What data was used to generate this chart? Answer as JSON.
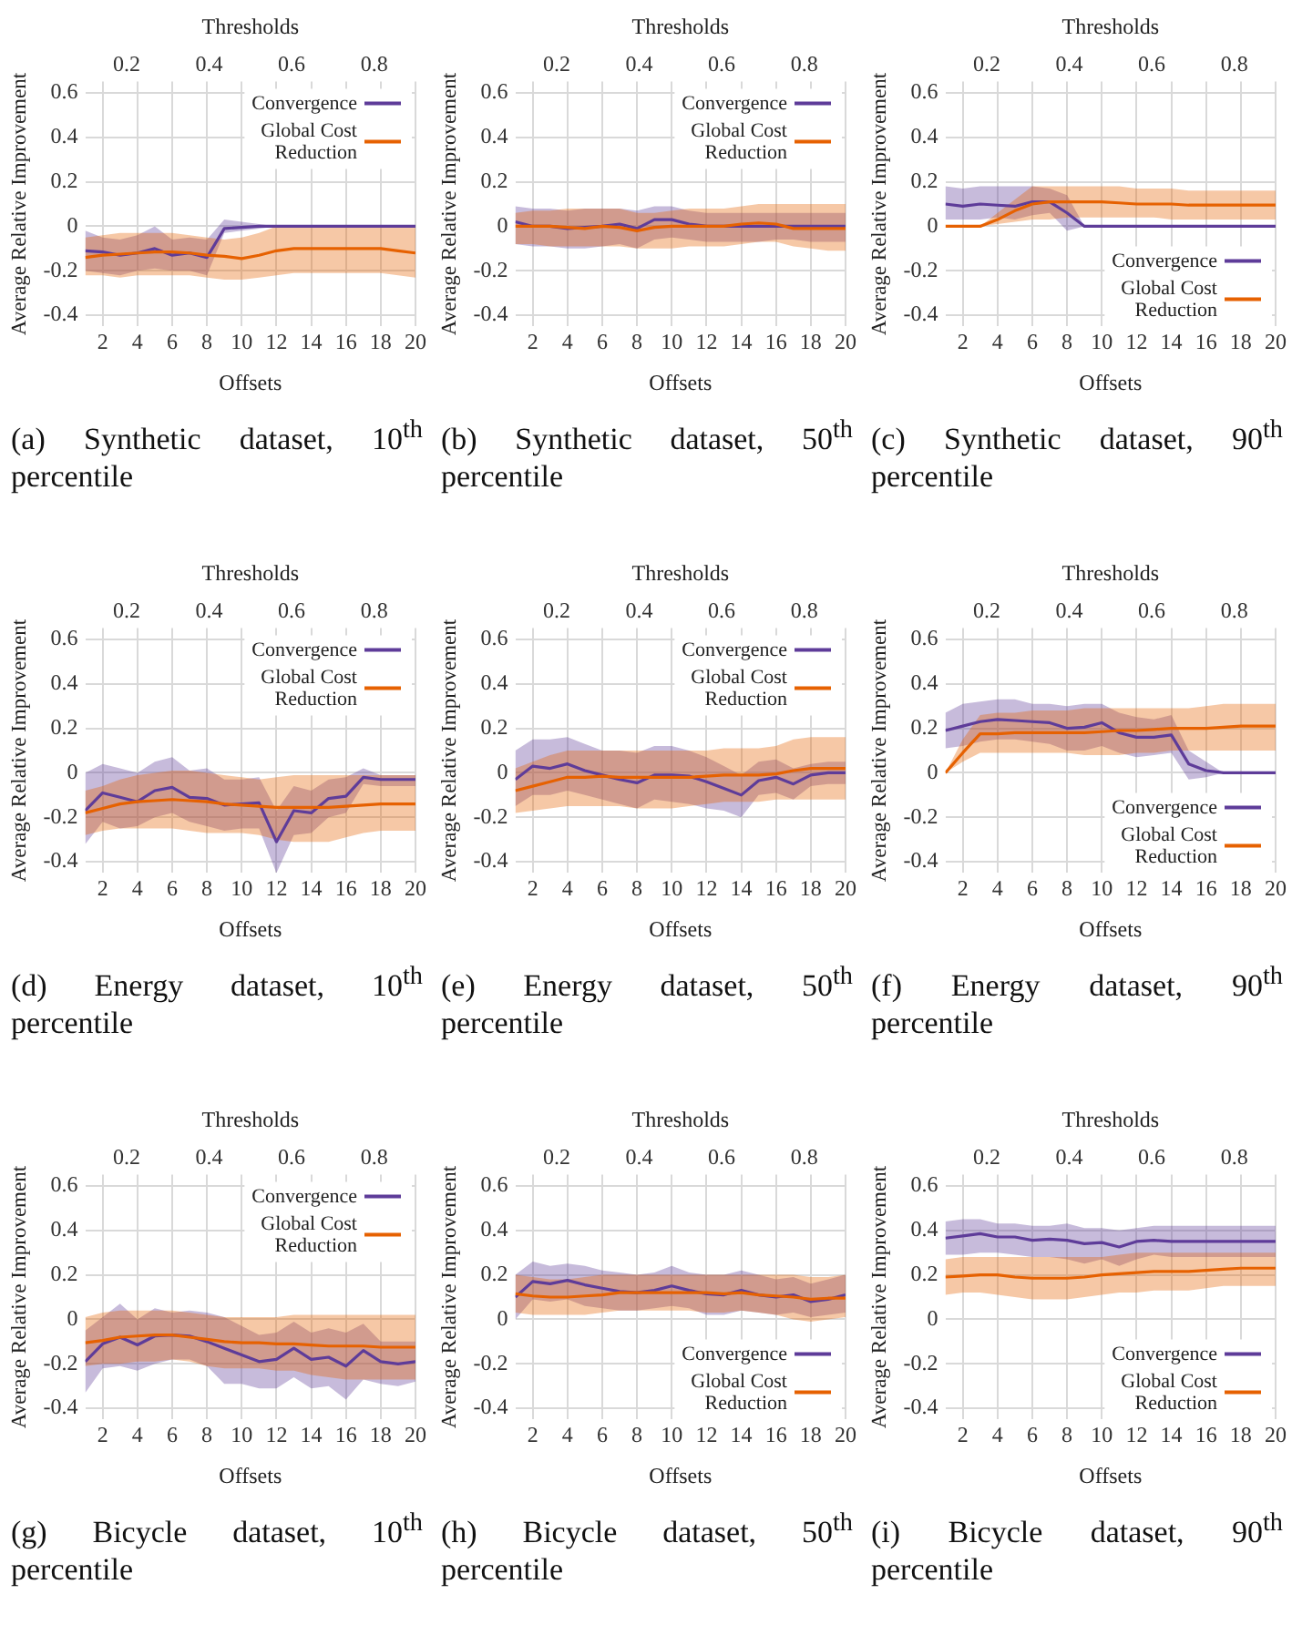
{
  "chart_data": [
    {
      "type": "line",
      "xlabel": "Offsets",
      "x2label": "Thresholds",
      "ylabel": "Average Relative Improvement",
      "annotations": [
        "(a) Synthetic dataset, 10$^{th}$ percentile"
      ],
      "x": [
        1,
        2,
        3,
        4,
        5,
        6,
        7,
        8,
        9,
        10,
        11,
        12,
        13,
        14,
        15,
        16,
        17,
        18,
        19,
        20
      ],
      "xlim": [
        1,
        20
      ],
      "xticks": [
        2,
        4,
        6,
        8,
        10,
        12,
        14,
        16,
        18,
        20
      ],
      "x2lim": [
        0.1,
        0.9
      ],
      "x2ticks": [
        0.2,
        0.4,
        0.6,
        0.8
      ],
      "ylim": [
        -0.45,
        0.65
      ],
      "yticks": [
        -0.4,
        -0.2,
        0,
        0.2,
        0.4,
        0.6
      ],
      "grid": true,
      "legend": "top right",
      "series": [
        {
          "name": "Convergence",
          "color": "#5e3c99",
          "values": [
            -0.11,
            -0.115,
            -0.13,
            -0.12,
            -0.1,
            -0.13,
            -0.12,
            -0.14,
            -0.01,
            -0.005,
            0,
            0,
            0,
            0,
            0,
            0,
            0,
            0,
            0,
            0
          ],
          "lower": [
            -0.2,
            -0.21,
            -0.22,
            -0.2,
            -0.19,
            -0.2,
            -0.2,
            -0.22,
            -0.03,
            -0.02,
            -0.01,
            0,
            0,
            0,
            0,
            0,
            0,
            0,
            0,
            0
          ],
          "upper": [
            -0.02,
            -0.05,
            -0.06,
            -0.04,
            0,
            -0.06,
            -0.05,
            -0.06,
            0.03,
            0.02,
            0.01,
            0,
            0,
            0,
            0,
            0,
            0,
            0,
            0,
            0
          ]
        },
        {
          "name": "Global Cost Reduction",
          "color": "#e66101",
          "values": [
            -0.14,
            -0.13,
            -0.125,
            -0.12,
            -0.115,
            -0.115,
            -0.12,
            -0.13,
            -0.135,
            -0.145,
            -0.13,
            -0.11,
            -0.1,
            -0.1,
            -0.1,
            -0.1,
            -0.1,
            -0.1,
            -0.11,
            -0.12
          ],
          "lower": [
            -0.22,
            -0.22,
            -0.23,
            -0.22,
            -0.22,
            -0.22,
            -0.22,
            -0.23,
            -0.24,
            -0.24,
            -0.23,
            -0.22,
            -0.21,
            -0.21,
            -0.21,
            -0.21,
            -0.21,
            -0.21,
            -0.22,
            -0.23
          ],
          "upper": [
            -0.05,
            -0.04,
            -0.03,
            -0.03,
            -0.03,
            -0.03,
            -0.04,
            -0.05,
            -0.06,
            -0.05,
            -0.03,
            0,
            0,
            0,
            0,
            0,
            0,
            0,
            0,
            0
          ]
        }
      ]
    },
    {
      "type": "line",
      "xlabel": "Offsets",
      "x2label": "Thresholds",
      "ylabel": "Average Relative Improvement",
      "annotations": [
        "(b) Synthetic dataset, 50$^{th}$ percentile"
      ],
      "x": [
        1,
        2,
        3,
        4,
        5,
        6,
        7,
        8,
        9,
        10,
        11,
        12,
        13,
        14,
        15,
        16,
        17,
        18,
        19,
        20
      ],
      "xlim": [
        1,
        20
      ],
      "xticks": [
        2,
        4,
        6,
        8,
        10,
        12,
        14,
        16,
        18,
        20
      ],
      "x2lim": [
        0.1,
        0.9
      ],
      "x2ticks": [
        0.2,
        0.4,
        0.6,
        0.8
      ],
      "ylim": [
        -0.45,
        0.65
      ],
      "yticks": [
        -0.4,
        -0.2,
        0,
        0.2,
        0.4,
        0.6
      ],
      "grid": true,
      "legend": "top right",
      "series": [
        {
          "name": "Convergence",
          "color": "#5e3c99",
          "values": [
            0.02,
            0,
            0,
            -0.01,
            -0.005,
            0,
            0.01,
            -0.01,
            0.03,
            0.03,
            0.01,
            0,
            0,
            0,
            0,
            0,
            0,
            0,
            0,
            0
          ],
          "lower": [
            -0.08,
            -0.09,
            -0.09,
            -0.1,
            -0.1,
            -0.09,
            -0.08,
            -0.1,
            -0.06,
            -0.05,
            -0.06,
            -0.07,
            -0.07,
            -0.07,
            -0.07,
            -0.06,
            -0.06,
            -0.07,
            -0.07,
            -0.07
          ],
          "upper": [
            0.09,
            0.08,
            0.08,
            0.07,
            0.08,
            0.08,
            0.08,
            0.07,
            0.09,
            0.09,
            0.07,
            0.06,
            0.06,
            0.06,
            0.06,
            0.06,
            0.06,
            0.06,
            0.06,
            0.06
          ]
        },
        {
          "name": "Global Cost Reduction",
          "color": "#e66101",
          "values": [
            0,
            0,
            0,
            -0.005,
            -0.01,
            0,
            -0.005,
            -0.02,
            -0.005,
            0,
            0,
            0,
            0,
            0.01,
            0.015,
            0.01,
            -0.01,
            -0.01,
            -0.01,
            -0.01
          ],
          "lower": [
            -0.08,
            -0.08,
            -0.09,
            -0.09,
            -0.09,
            -0.09,
            -0.09,
            -0.1,
            -0.1,
            -0.1,
            -0.09,
            -0.09,
            -0.09,
            -0.08,
            -0.07,
            -0.07,
            -0.09,
            -0.1,
            -0.11,
            -0.11
          ],
          "upper": [
            0.06,
            0.07,
            0.07,
            0.08,
            0.08,
            0.08,
            0.08,
            0.06,
            0.06,
            0.07,
            0.08,
            0.08,
            0.08,
            0.09,
            0.1,
            0.1,
            0.1,
            0.1,
            0.1,
            0.1
          ]
        }
      ]
    },
    {
      "type": "line",
      "xlabel": "Offsets",
      "x2label": "Thresholds",
      "ylabel": "Average Relative Improvement",
      "annotations": [
        "(c) Synthetic dataset, 90$^{th}$ percentile"
      ],
      "x": [
        1,
        2,
        3,
        4,
        5,
        6,
        7,
        8,
        9,
        10,
        11,
        12,
        13,
        14,
        15,
        16,
        17,
        18,
        19,
        20
      ],
      "xlim": [
        1,
        20
      ],
      "xticks": [
        2,
        4,
        6,
        8,
        10,
        12,
        14,
        16,
        18,
        20
      ],
      "x2lim": [
        0.1,
        0.9
      ],
      "x2ticks": [
        0.2,
        0.4,
        0.6,
        0.8
      ],
      "ylim": [
        -0.45,
        0.65
      ],
      "yticks": [
        -0.4,
        -0.2,
        0,
        0.2,
        0.4,
        0.6
      ],
      "grid": true,
      "legend": "bottom right",
      "series": [
        {
          "name": "Convergence",
          "color": "#5e3c99",
          "values": [
            0.1,
            0.09,
            0.1,
            0.095,
            0.09,
            0.11,
            0.11,
            0.06,
            0,
            0,
            0,
            0,
            0,
            0,
            0,
            0,
            0,
            0,
            0,
            0
          ],
          "lower": [
            0.03,
            0.03,
            0.03,
            0.04,
            0.03,
            0.05,
            0.06,
            -0.02,
            0,
            0,
            0,
            0,
            0,
            0,
            0,
            0,
            0,
            0,
            0,
            0
          ],
          "upper": [
            0.18,
            0.17,
            0.18,
            0.18,
            0.18,
            0.18,
            0.17,
            0.14,
            0,
            0,
            0,
            0,
            0,
            0,
            0,
            0,
            0,
            0,
            0,
            0
          ]
        },
        {
          "name": "Global Cost Reduction",
          "color": "#e66101",
          "values": [
            0,
            0,
            0,
            0.03,
            0.07,
            0.1,
            0.11,
            0.11,
            0.11,
            0.11,
            0.105,
            0.1,
            0.1,
            0.1,
            0.095,
            0.095,
            0.095,
            0.095,
            0.095,
            0.095
          ],
          "lower": [
            0,
            0,
            0,
            0.01,
            0.02,
            0.03,
            0.03,
            0.04,
            0.04,
            0.04,
            0.04,
            0.04,
            0.04,
            0.03,
            0.03,
            0.03,
            0.03,
            0.03,
            0.03,
            0.03
          ],
          "upper": [
            0,
            0,
            0,
            0.06,
            0.12,
            0.18,
            0.18,
            0.18,
            0.18,
            0.18,
            0.18,
            0.17,
            0.17,
            0.17,
            0.16,
            0.16,
            0.16,
            0.16,
            0.16,
            0.16
          ]
        }
      ]
    },
    {
      "type": "line",
      "xlabel": "Offsets",
      "x2label": "Thresholds",
      "ylabel": "Average Relative Improvement",
      "annotations": [
        "(d) Energy dataset, 10$^{th}$ percentile"
      ],
      "x": [
        1,
        2,
        3,
        4,
        5,
        6,
        7,
        8,
        9,
        10,
        11,
        12,
        13,
        14,
        15,
        16,
        17,
        18,
        19,
        20
      ],
      "xlim": [
        1,
        20
      ],
      "xticks": [
        2,
        4,
        6,
        8,
        10,
        12,
        14,
        16,
        18,
        20
      ],
      "x2lim": [
        0.1,
        0.9
      ],
      "x2ticks": [
        0.2,
        0.4,
        0.6,
        0.8
      ],
      "ylim": [
        -0.45,
        0.65
      ],
      "yticks": [
        -0.4,
        -0.2,
        0,
        0.2,
        0.4,
        0.6
      ],
      "grid": true,
      "legend": "top right",
      "series": [
        {
          "name": "Convergence",
          "color": "#5e3c99",
          "values": [
            -0.17,
            -0.09,
            -0.11,
            -0.13,
            -0.08,
            -0.065,
            -0.11,
            -0.115,
            -0.145,
            -0.14,
            -0.135,
            -0.31,
            -0.17,
            -0.18,
            -0.115,
            -0.105,
            -0.02,
            -0.03,
            -0.03,
            -0.03
          ],
          "lower": [
            -0.32,
            -0.22,
            -0.25,
            -0.24,
            -0.2,
            -0.18,
            -0.22,
            -0.24,
            -0.26,
            -0.25,
            -0.25,
            -0.45,
            -0.28,
            -0.27,
            -0.2,
            -0.18,
            -0.05,
            -0.06,
            -0.06,
            -0.06
          ],
          "upper": [
            0,
            0.04,
            0.02,
            0,
            0.05,
            0.07,
            0.01,
            0.02,
            -0.03,
            -0.03,
            -0.02,
            -0.17,
            -0.06,
            -0.08,
            -0.03,
            -0.02,
            0.02,
            -0.01,
            -0.01,
            -0.01
          ]
        },
        {
          "name": "Global Cost Reduction",
          "color": "#e66101",
          "values": [
            -0.18,
            -0.16,
            -0.14,
            -0.13,
            -0.125,
            -0.12,
            -0.125,
            -0.13,
            -0.14,
            -0.145,
            -0.15,
            -0.155,
            -0.155,
            -0.155,
            -0.155,
            -0.15,
            -0.145,
            -0.14,
            -0.14,
            -0.14
          ],
          "lower": [
            -0.28,
            -0.26,
            -0.25,
            -0.25,
            -0.25,
            -0.25,
            -0.26,
            -0.27,
            -0.27,
            -0.27,
            -0.28,
            -0.3,
            -0.31,
            -0.31,
            -0.31,
            -0.29,
            -0.27,
            -0.26,
            -0.26,
            -0.26
          ],
          "upper": [
            -0.08,
            -0.06,
            -0.03,
            -0.01,
            0,
            0.01,
            0.01,
            0,
            -0.01,
            -0.02,
            -0.03,
            -0.02,
            -0.01,
            -0.01,
            -0.01,
            -0.01,
            -0.01,
            -0.01,
            -0.01,
            -0.01
          ]
        }
      ]
    },
    {
      "type": "line",
      "xlabel": "Offsets",
      "x2label": "Thresholds",
      "ylabel": "Average Relative Improvement",
      "annotations": [
        "(e) Energy dataset, 50$^{th}$ percentile"
      ],
      "x": [
        1,
        2,
        3,
        4,
        5,
        6,
        7,
        8,
        9,
        10,
        11,
        12,
        13,
        14,
        15,
        16,
        17,
        18,
        19,
        20
      ],
      "xlim": [
        1,
        20
      ],
      "xticks": [
        2,
        4,
        6,
        8,
        10,
        12,
        14,
        16,
        18,
        20
      ],
      "x2lim": [
        0.1,
        0.9
      ],
      "x2ticks": [
        0.2,
        0.4,
        0.6,
        0.8
      ],
      "ylim": [
        -0.45,
        0.65
      ],
      "yticks": [
        -0.4,
        -0.2,
        0,
        0.2,
        0.4,
        0.6
      ],
      "grid": true,
      "legend": "top right",
      "series": [
        {
          "name": "Convergence",
          "color": "#5e3c99",
          "values": [
            -0.03,
            0.03,
            0.02,
            0.04,
            0.01,
            -0.01,
            -0.03,
            -0.045,
            -0.01,
            -0.01,
            -0.015,
            -0.04,
            -0.07,
            -0.1,
            -0.035,
            -0.02,
            -0.05,
            -0.01,
            0,
            0
          ],
          "lower": [
            -0.15,
            -0.1,
            -0.1,
            -0.08,
            -0.1,
            -0.12,
            -0.14,
            -0.16,
            -0.12,
            -0.13,
            -0.14,
            -0.16,
            -0.17,
            -0.2,
            -0.1,
            -0.09,
            -0.12,
            -0.06,
            -0.05,
            -0.05
          ],
          "upper": [
            0.1,
            0.15,
            0.15,
            0.16,
            0.13,
            0.1,
            0.1,
            0.09,
            0.12,
            0.12,
            0.1,
            0.07,
            0.03,
            -0.01,
            0.05,
            0.06,
            0.02,
            0.04,
            0.05,
            0.05
          ]
        },
        {
          "name": "Global Cost Reduction",
          "color": "#e66101",
          "values": [
            -0.08,
            -0.06,
            -0.04,
            -0.02,
            -0.02,
            -0.015,
            -0.02,
            -0.02,
            -0.02,
            -0.02,
            -0.02,
            -0.015,
            -0.01,
            -0.01,
            -0.01,
            -0.005,
            0.01,
            0.02,
            0.02,
            0.02
          ],
          "lower": [
            -0.18,
            -0.17,
            -0.16,
            -0.15,
            -0.15,
            -0.15,
            -0.15,
            -0.16,
            -0.16,
            -0.16,
            -0.15,
            -0.14,
            -0.13,
            -0.13,
            -0.13,
            -0.12,
            -0.12,
            -0.12,
            -0.12,
            -0.12
          ],
          "upper": [
            0.02,
            0.05,
            0.08,
            0.1,
            0.1,
            0.1,
            0.1,
            0.1,
            0.1,
            0.1,
            0.1,
            0.1,
            0.11,
            0.11,
            0.11,
            0.12,
            0.15,
            0.16,
            0.16,
            0.16
          ]
        }
      ]
    },
    {
      "type": "line",
      "xlabel": "Offsets",
      "x2label": "Thresholds",
      "ylabel": "Average Relative Improvement",
      "annotations": [
        "(f) Energy dataset, 90$^{th}$ percentile"
      ],
      "x": [
        1,
        2,
        3,
        4,
        5,
        6,
        7,
        8,
        9,
        10,
        11,
        12,
        13,
        14,
        15,
        16,
        17,
        18,
        19,
        20
      ],
      "xlim": [
        1,
        20
      ],
      "xticks": [
        2,
        4,
        6,
        8,
        10,
        12,
        14,
        16,
        18,
        20
      ],
      "x2lim": [
        0.1,
        0.9
      ],
      "x2ticks": [
        0.2,
        0.4,
        0.6,
        0.8
      ],
      "ylim": [
        -0.45,
        0.65
      ],
      "yticks": [
        -0.4,
        -0.2,
        0,
        0.2,
        0.4,
        0.6
      ],
      "grid": true,
      "legend": "bottom right",
      "series": [
        {
          "name": "Convergence",
          "color": "#5e3c99",
          "values": [
            0.19,
            0.21,
            0.23,
            0.24,
            0.235,
            0.23,
            0.225,
            0.2,
            0.205,
            0.225,
            0.18,
            0.16,
            0.16,
            0.17,
            0.04,
            0.01,
            0,
            0,
            0,
            0
          ],
          "lower": [
            0.11,
            0.12,
            0.14,
            0.15,
            0.15,
            0.14,
            0.13,
            0.1,
            0.1,
            0.12,
            0.09,
            0.07,
            0.08,
            0.09,
            -0.03,
            -0.02,
            0,
            0,
            0,
            0
          ],
          "upper": [
            0.27,
            0.31,
            0.32,
            0.33,
            0.33,
            0.31,
            0.31,
            0.3,
            0.31,
            0.31,
            0.27,
            0.25,
            0.24,
            0.26,
            0.1,
            0.05,
            0,
            0,
            0,
            0
          ]
        },
        {
          "name": "Global Cost Reduction",
          "color": "#e66101",
          "values": [
            0,
            0.09,
            0.175,
            0.175,
            0.18,
            0.18,
            0.18,
            0.18,
            0.18,
            0.185,
            0.19,
            0.19,
            0.195,
            0.2,
            0.2,
            0.2,
            0.205,
            0.21,
            0.21,
            0.21
          ],
          "lower": [
            0,
            0.05,
            0.09,
            0.09,
            0.09,
            0.09,
            0.09,
            0.09,
            0.08,
            0.08,
            0.08,
            0.09,
            0.09,
            0.1,
            0.1,
            0.1,
            0.1,
            0.1,
            0.1,
            0.1
          ],
          "upper": [
            0,
            0.15,
            0.26,
            0.27,
            0.27,
            0.28,
            0.28,
            0.28,
            0.29,
            0.29,
            0.29,
            0.29,
            0.29,
            0.29,
            0.29,
            0.3,
            0.31,
            0.31,
            0.31,
            0.31
          ]
        }
      ]
    },
    {
      "type": "line",
      "xlabel": "Offsets",
      "x2label": "Thresholds",
      "ylabel": "Average Relative Improvement",
      "annotations": [
        "(g) Bicycle dataset, 10$^{th}$ percentile"
      ],
      "x": [
        1,
        2,
        3,
        4,
        5,
        6,
        7,
        8,
        9,
        10,
        11,
        12,
        13,
        14,
        15,
        16,
        17,
        18,
        19,
        20
      ],
      "xlim": [
        1,
        20
      ],
      "xticks": [
        2,
        4,
        6,
        8,
        10,
        12,
        14,
        16,
        18,
        20
      ],
      "x2lim": [
        0.1,
        0.9
      ],
      "x2ticks": [
        0.2,
        0.4,
        0.6,
        0.8
      ],
      "ylim": [
        -0.45,
        0.65
      ],
      "yticks": [
        -0.4,
        -0.2,
        0,
        0.2,
        0.4,
        0.6
      ],
      "grid": true,
      "legend": "top right",
      "series": [
        {
          "name": "Convergence",
          "color": "#5e3c99",
          "values": [
            -0.19,
            -0.11,
            -0.08,
            -0.115,
            -0.075,
            -0.07,
            -0.075,
            -0.1,
            -0.13,
            -0.16,
            -0.19,
            -0.18,
            -0.13,
            -0.18,
            -0.17,
            -0.21,
            -0.14,
            -0.19,
            -0.2,
            -0.19
          ],
          "lower": [
            -0.33,
            -0.22,
            -0.21,
            -0.23,
            -0.2,
            -0.18,
            -0.18,
            -0.21,
            -0.29,
            -0.29,
            -0.31,
            -0.31,
            -0.26,
            -0.31,
            -0.3,
            -0.36,
            -0.27,
            -0.29,
            -0.3,
            -0.28
          ],
          "upper": [
            -0.05,
            0.01,
            0.07,
            0,
            0.05,
            0.03,
            0.04,
            0.03,
            0.01,
            -0.03,
            -0.07,
            -0.06,
            -0.01,
            -0.06,
            -0.04,
            -0.06,
            -0.02,
            -0.1,
            -0.1,
            -0.1
          ]
        },
        {
          "name": "Global Cost Reduction",
          "color": "#e66101",
          "values": [
            -0.105,
            -0.095,
            -0.08,
            -0.075,
            -0.07,
            -0.07,
            -0.08,
            -0.09,
            -0.1,
            -0.105,
            -0.105,
            -0.11,
            -0.11,
            -0.115,
            -0.12,
            -0.12,
            -0.12,
            -0.125,
            -0.125,
            -0.125
          ],
          "lower": [
            -0.21,
            -0.2,
            -0.2,
            -0.19,
            -0.19,
            -0.18,
            -0.19,
            -0.21,
            -0.22,
            -0.22,
            -0.22,
            -0.23,
            -0.23,
            -0.25,
            -0.26,
            -0.27,
            -0.27,
            -0.27,
            -0.27,
            -0.27
          ],
          "upper": [
            0.01,
            0.03,
            0.04,
            0.04,
            0.04,
            0.04,
            0.03,
            0.02,
            0.01,
            0.01,
            0.01,
            0.01,
            0.02,
            0.02,
            0.02,
            0.02,
            0.02,
            0.02,
            0.02,
            0.02
          ]
        }
      ]
    },
    {
      "type": "line",
      "xlabel": "Offsets",
      "x2label": "Thresholds",
      "ylabel": "Average Relative Improvement",
      "annotations": [
        "(h) Bicycle dataset, 50$^{th}$ percentile"
      ],
      "x": [
        1,
        2,
        3,
        4,
        5,
        6,
        7,
        8,
        9,
        10,
        11,
        12,
        13,
        14,
        15,
        16,
        17,
        18,
        19,
        20
      ],
      "xlim": [
        1,
        20
      ],
      "xticks": [
        2,
        4,
        6,
        8,
        10,
        12,
        14,
        16,
        18,
        20
      ],
      "x2lim": [
        0.1,
        0.9
      ],
      "x2ticks": [
        0.2,
        0.4,
        0.6,
        0.8
      ],
      "ylim": [
        -0.45,
        0.65
      ],
      "yticks": [
        -0.4,
        -0.2,
        0,
        0.2,
        0.4,
        0.6
      ],
      "grid": true,
      "legend": "bottom right",
      "series": [
        {
          "name": "Convergence",
          "color": "#5e3c99",
          "values": [
            0.1,
            0.17,
            0.16,
            0.175,
            0.155,
            0.14,
            0.125,
            0.12,
            0.13,
            0.15,
            0.13,
            0.115,
            0.11,
            0.13,
            0.11,
            0.1,
            0.11,
            0.08,
            0.09,
            0.11
          ],
          "lower": [
            0,
            0.09,
            0.08,
            0.09,
            0.06,
            0.05,
            0.04,
            0.04,
            0.05,
            0.06,
            0.05,
            0.02,
            0.02,
            0.04,
            0.03,
            0.02,
            0.03,
            0.01,
            0.02,
            0.03
          ],
          "upper": [
            0.2,
            0.26,
            0.24,
            0.25,
            0.24,
            0.22,
            0.21,
            0.2,
            0.21,
            0.24,
            0.21,
            0.2,
            0.2,
            0.22,
            0.2,
            0.18,
            0.19,
            0.16,
            0.18,
            0.2
          ]
        },
        {
          "name": "Global Cost Reduction",
          "color": "#e66101",
          "values": [
            0.115,
            0.105,
            0.1,
            0.1,
            0.105,
            0.11,
            0.12,
            0.12,
            0.12,
            0.12,
            0.12,
            0.12,
            0.115,
            0.12,
            0.11,
            0.105,
            0.1,
            0.09,
            0.095,
            0.095
          ],
          "lower": [
            0.03,
            0.02,
            0.02,
            0.02,
            0.02,
            0.03,
            0.04,
            0.04,
            0.04,
            0.04,
            0.04,
            0.03,
            0.03,
            0.04,
            0.03,
            0.02,
            0,
            -0.01,
            0,
            0.01
          ],
          "upper": [
            0.2,
            0.19,
            0.18,
            0.18,
            0.19,
            0.2,
            0.2,
            0.2,
            0.2,
            0.2,
            0.2,
            0.2,
            0.2,
            0.2,
            0.2,
            0.2,
            0.2,
            0.19,
            0.19,
            0.2
          ]
        }
      ]
    },
    {
      "type": "line",
      "xlabel": "Offsets",
      "x2label": "Thresholds",
      "ylabel": "Average Relative Improvement",
      "annotations": [
        "(i) Bicycle dataset, 90$^{th}$ percentile"
      ],
      "x": [
        1,
        2,
        3,
        4,
        5,
        6,
        7,
        8,
        9,
        10,
        11,
        12,
        13,
        14,
        15,
        16,
        17,
        18,
        19,
        20
      ],
      "xlim": [
        1,
        20
      ],
      "xticks": [
        2,
        4,
        6,
        8,
        10,
        12,
        14,
        16,
        18,
        20
      ],
      "x2lim": [
        0.1,
        0.9
      ],
      "x2ticks": [
        0.2,
        0.4,
        0.6,
        0.8
      ],
      "ylim": [
        -0.45,
        0.65
      ],
      "yticks": [
        -0.4,
        -0.2,
        0,
        0.2,
        0.4,
        0.6
      ],
      "grid": true,
      "legend": "bottom right",
      "series": [
        {
          "name": "Convergence",
          "color": "#5e3c99",
          "values": [
            0.365,
            0.375,
            0.385,
            0.37,
            0.37,
            0.355,
            0.36,
            0.355,
            0.34,
            0.345,
            0.325,
            0.35,
            0.355,
            0.35,
            0.35,
            0.35,
            0.35,
            0.35,
            0.35,
            0.35
          ],
          "lower": [
            0.29,
            0.29,
            0.3,
            0.3,
            0.29,
            0.28,
            0.28,
            0.27,
            0.25,
            0.27,
            0.24,
            0.27,
            0.29,
            0.28,
            0.28,
            0.28,
            0.28,
            0.28,
            0.28,
            0.28
          ],
          "upper": [
            0.44,
            0.45,
            0.45,
            0.43,
            0.43,
            0.42,
            0.42,
            0.43,
            0.41,
            0.41,
            0.4,
            0.41,
            0.42,
            0.42,
            0.42,
            0.42,
            0.42,
            0.42,
            0.42,
            0.42
          ]
        },
        {
          "name": "Global Cost Reduction",
          "color": "#e66101",
          "values": [
            0.19,
            0.195,
            0.2,
            0.2,
            0.19,
            0.185,
            0.185,
            0.185,
            0.19,
            0.2,
            0.205,
            0.21,
            0.215,
            0.215,
            0.215,
            0.22,
            0.225,
            0.23,
            0.23,
            0.23
          ],
          "lower": [
            0.11,
            0.12,
            0.12,
            0.11,
            0.1,
            0.09,
            0.09,
            0.09,
            0.1,
            0.11,
            0.12,
            0.12,
            0.13,
            0.13,
            0.13,
            0.14,
            0.15,
            0.15,
            0.15,
            0.15
          ],
          "upper": [
            0.27,
            0.28,
            0.28,
            0.28,
            0.28,
            0.28,
            0.28,
            0.28,
            0.28,
            0.28,
            0.29,
            0.3,
            0.3,
            0.3,
            0.3,
            0.3,
            0.3,
            0.3,
            0.3,
            0.3
          ]
        }
      ]
    }
  ]
}
